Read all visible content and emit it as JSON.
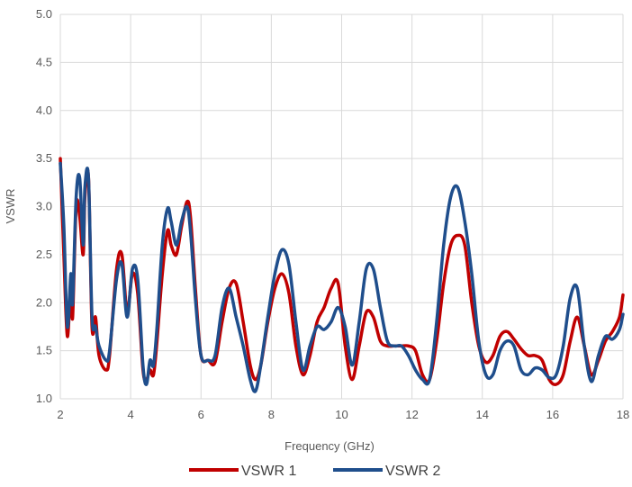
{
  "chart_data": {
    "type": "line",
    "title": "",
    "xlabel": "Frequency (GHz)",
    "ylabel": "VSWR",
    "xlim": [
      2,
      18
    ],
    "ylim": [
      1.0,
      5.0
    ],
    "x_ticks": [
      "2",
      "4",
      "6",
      "8",
      "10",
      "12",
      "14",
      "16",
      "18"
    ],
    "y_ticks": [
      "1.0",
      "1.5",
      "2.0",
      "2.5",
      "3.0",
      "3.5",
      "4.0",
      "4.5",
      "5.0"
    ],
    "grid": true,
    "legend_position": "bottom",
    "series": [
      {
        "name": "VSWR 1",
        "color": "#C00000",
        "x": [
          2.0,
          2.1,
          2.2,
          2.3,
          2.35,
          2.45,
          2.55,
          2.65,
          2.7,
          2.8,
          2.9,
          3.0,
          3.1,
          3.3,
          3.4,
          3.6,
          3.75,
          3.9,
          4.05,
          4.2,
          4.35,
          4.45,
          4.55,
          4.65,
          4.75,
          4.9,
          5.05,
          5.15,
          5.3,
          5.45,
          5.6,
          5.7,
          5.85,
          6.0,
          6.2,
          6.4,
          6.6,
          6.8,
          7.0,
          7.2,
          7.4,
          7.55,
          7.7,
          7.9,
          8.1,
          8.3,
          8.5,
          8.7,
          8.9,
          9.1,
          9.3,
          9.5,
          9.7,
          9.9,
          10.1,
          10.3,
          10.5,
          10.7,
          10.9,
          11.1,
          11.3,
          11.5,
          11.7,
          11.9,
          12.1,
          12.3,
          12.5,
          12.7,
          12.9,
          13.1,
          13.3,
          13.5,
          13.7,
          13.9,
          14.1,
          14.3,
          14.5,
          14.7,
          14.9,
          15.1,
          15.3,
          15.5,
          15.7,
          15.9,
          16.1,
          16.3,
          16.5,
          16.7,
          16.9,
          17.1,
          17.3,
          17.5,
          17.7,
          17.9,
          18.0
        ],
        "y": [
          3.5,
          2.5,
          1.65,
          2.2,
          1.85,
          3.0,
          2.9,
          2.5,
          3.1,
          3.3,
          1.75,
          1.85,
          1.45,
          1.3,
          1.45,
          2.35,
          2.5,
          1.9,
          2.3,
          2.1,
          1.3,
          1.2,
          1.3,
          1.25,
          1.6,
          2.3,
          2.75,
          2.6,
          2.5,
          2.8,
          3.05,
          2.9,
          2.1,
          1.45,
          1.4,
          1.38,
          1.8,
          2.15,
          2.2,
          1.8,
          1.35,
          1.2,
          1.35,
          1.8,
          2.15,
          2.3,
          2.1,
          1.55,
          1.25,
          1.45,
          1.8,
          1.95,
          2.15,
          2.2,
          1.55,
          1.2,
          1.55,
          1.9,
          1.85,
          1.6,
          1.55,
          1.55,
          1.55,
          1.55,
          1.5,
          1.25,
          1.2,
          1.6,
          2.2,
          2.6,
          2.7,
          2.6,
          2.0,
          1.55,
          1.38,
          1.45,
          1.65,
          1.7,
          1.62,
          1.52,
          1.45,
          1.45,
          1.4,
          1.2,
          1.15,
          1.25,
          1.6,
          1.85,
          1.55,
          1.25,
          1.4,
          1.6,
          1.7,
          1.85,
          2.08
        ]
      },
      {
        "name": "VSWR 2",
        "color": "#1F4E8C",
        "x": [
          2.0,
          2.1,
          2.2,
          2.3,
          2.35,
          2.45,
          2.55,
          2.65,
          2.7,
          2.8,
          2.9,
          3.0,
          3.1,
          3.3,
          3.4,
          3.6,
          3.75,
          3.9,
          4.05,
          4.2,
          4.35,
          4.45,
          4.55,
          4.65,
          4.75,
          4.9,
          5.05,
          5.15,
          5.3,
          5.45,
          5.6,
          5.7,
          5.85,
          6.0,
          6.2,
          6.4,
          6.6,
          6.8,
          7.0,
          7.2,
          7.4,
          7.55,
          7.7,
          7.9,
          8.1,
          8.3,
          8.5,
          8.7,
          8.9,
          9.1,
          9.3,
          9.5,
          9.7,
          9.9,
          10.1,
          10.3,
          10.5,
          10.7,
          10.9,
          11.1,
          11.3,
          11.5,
          11.7,
          11.9,
          12.1,
          12.3,
          12.5,
          12.7,
          12.9,
          13.1,
          13.3,
          13.5,
          13.7,
          13.9,
          14.1,
          14.3,
          14.5,
          14.7,
          14.9,
          15.1,
          15.3,
          15.5,
          15.7,
          15.9,
          16.1,
          16.3,
          16.5,
          16.7,
          16.9,
          17.1,
          17.3,
          17.5,
          17.7,
          17.9,
          18.0
        ],
        "y": [
          3.45,
          2.8,
          1.75,
          2.3,
          2.0,
          3.1,
          3.3,
          2.6,
          3.2,
          3.3,
          1.85,
          1.75,
          1.55,
          1.4,
          1.5,
          2.25,
          2.4,
          1.85,
          2.35,
          2.25,
          1.35,
          1.15,
          1.4,
          1.35,
          1.75,
          2.6,
          2.98,
          2.85,
          2.6,
          2.85,
          3.0,
          2.75,
          2.0,
          1.45,
          1.4,
          1.45,
          1.95,
          2.15,
          1.85,
          1.55,
          1.2,
          1.08,
          1.35,
          1.85,
          2.3,
          2.55,
          2.4,
          1.8,
          1.3,
          1.55,
          1.75,
          1.72,
          1.8,
          1.95,
          1.75,
          1.35,
          1.8,
          2.35,
          2.35,
          1.95,
          1.6,
          1.55,
          1.55,
          1.45,
          1.3,
          1.2,
          1.2,
          1.8,
          2.6,
          3.1,
          3.2,
          2.85,
          2.3,
          1.6,
          1.25,
          1.25,
          1.5,
          1.6,
          1.55,
          1.3,
          1.25,
          1.32,
          1.3,
          1.22,
          1.25,
          1.55,
          2.05,
          2.15,
          1.55,
          1.18,
          1.45,
          1.65,
          1.62,
          1.72,
          1.88
        ]
      }
    ]
  }
}
